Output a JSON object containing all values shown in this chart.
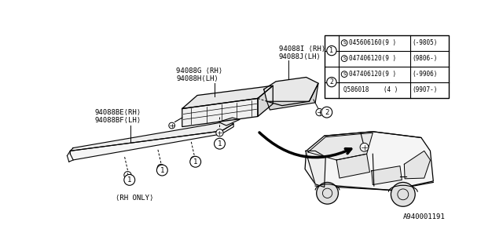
{
  "bg_color": "#ffffff",
  "line_color": "#000000",
  "table": {
    "rows": [
      {
        "ref": "1",
        "symbol": true,
        "part": "045606160(9 )",
        "date": "(-9805)"
      },
      {
        "ref": "1",
        "symbol": true,
        "part": "047406120(9 )",
        "date": "(9806-)"
      },
      {
        "ref": "2",
        "symbol": true,
        "part": "047406120(9 )",
        "date": "(-9906)"
      },
      {
        "ref": "2",
        "symbol": false,
        "part": "Q586018    (4 )",
        "date": "(9907-)"
      }
    ]
  },
  "footer": "A940001191",
  "label_94088I": "94088I ⟨RH⟩",
  "label_94088J": "94088J⟨LH⟩",
  "label_94088G": "94088G ⟨RH⟩",
  "label_94088H": "94088H⟨LH⟩",
  "label_94088E": "94088BE⟨RH⟩",
  "label_94088F": "94088BF⟨LH⟩",
  "label_rh_only": "⟨RH ONLY⟩"
}
